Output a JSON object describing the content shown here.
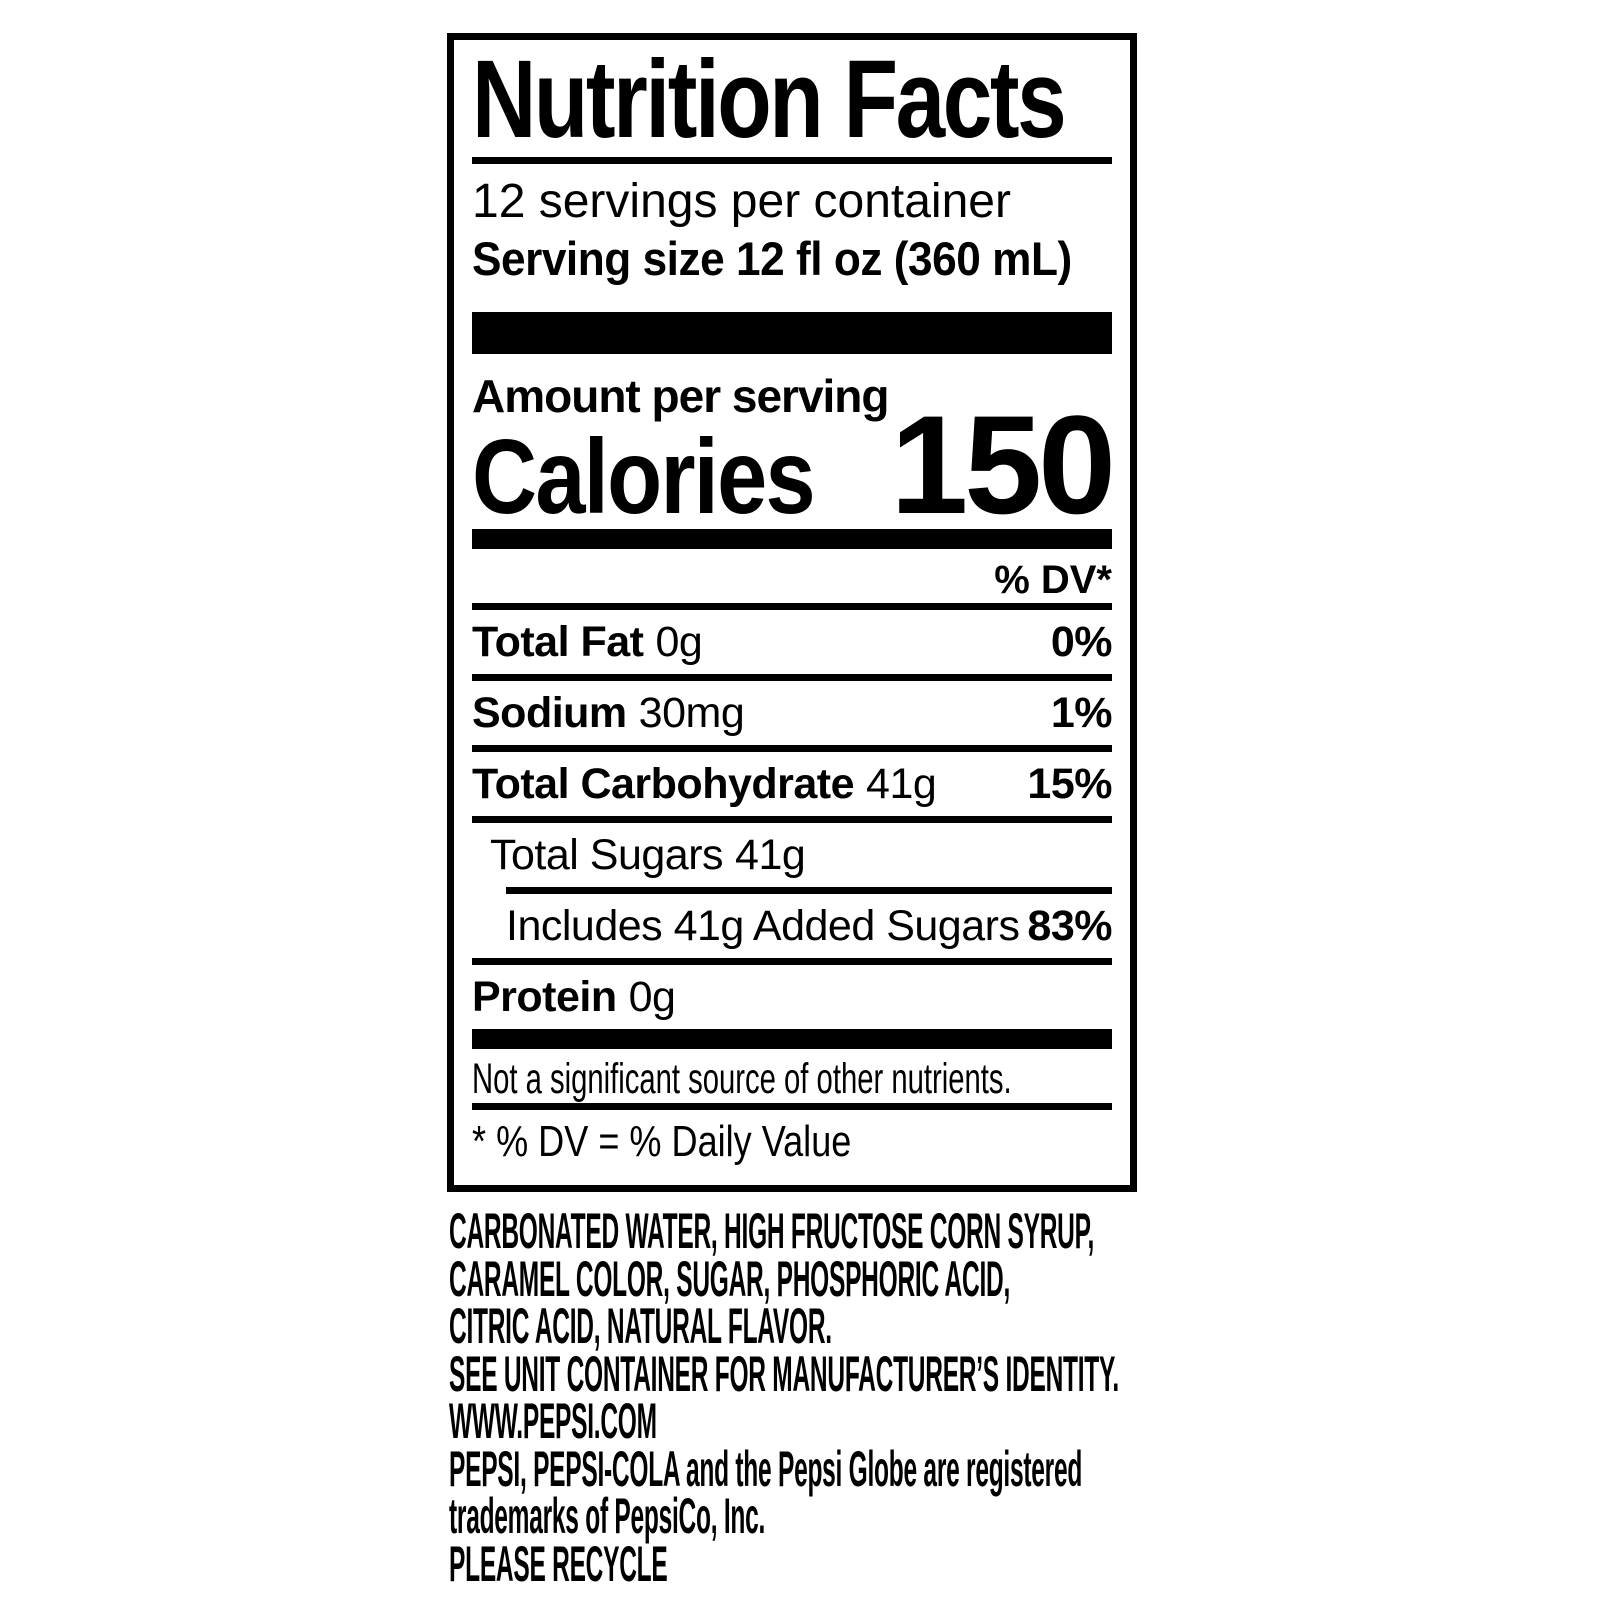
{
  "colors": {
    "ink": "#000000",
    "paper": "#ffffff"
  },
  "label": {
    "title": "Nutrition Facts",
    "servings_per_container": "12 servings per container",
    "serving_size": "Serving size 12 fl oz (360 mL)",
    "amount_per_serving": "Amount per serving",
    "calories_label": "Calories",
    "calories_value": "150",
    "dv_header": "% DV*",
    "rows": [
      {
        "name": "Total Fat",
        "amount": "0g",
        "dv": "0%"
      },
      {
        "name": "Sodium",
        "amount": "30mg",
        "dv": "1%"
      },
      {
        "name": "Total Carbohydrate",
        "amount": "41g",
        "dv": "15%"
      },
      {
        "name": "Total Sugars",
        "amount": "41g",
        "dv": ""
      },
      {
        "name": "Includes 41g Added Sugars",
        "amount": "",
        "dv": "83%"
      },
      {
        "name": "Protein",
        "amount": "0g",
        "dv": ""
      }
    ],
    "other_nutrients_note": "Not a significant source of other nutrients.",
    "dv_footnote": "* % DV = % Daily Value"
  },
  "package_text": {
    "lines": [
      "CARBONATED WATER, HIGH FRUCTOSE CORN SYRUP,",
      "CARAMEL COLOR, SUGAR, PHOSPHORIC ACID,",
      "CITRIC ACID, NATURAL FLAVOR.",
      "SEE UNIT CONTAINER FOR MANUFACTURER’S IDENTITY.",
      "WWW.PEPSI.COM",
      "PEPSI, PEPSI-COLA and the Pepsi Globe are registered",
      "trademarks of PepsiCo, Inc.",
      "PLEASE RECYCLE"
    ]
  }
}
